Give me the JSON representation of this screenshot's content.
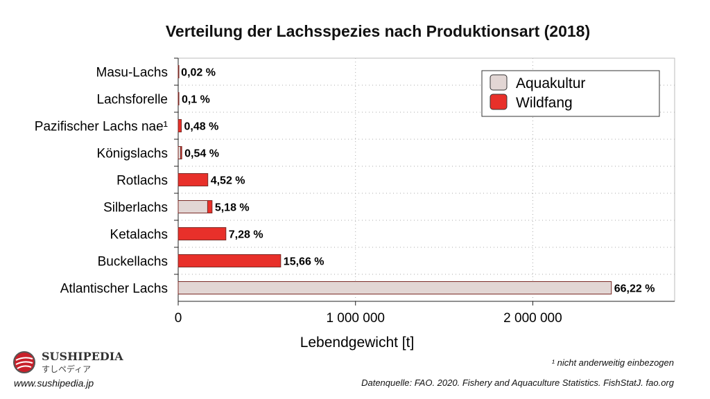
{
  "chart_data": {
    "type": "bar",
    "orientation": "horizontal",
    "stacked": true,
    "title": "Verteilung der Lachsspezies nach Produktionsart (2018)",
    "xlabel": "Lebendgewicht [t]",
    "ylabel": "",
    "xlim": [
      0,
      2800000
    ],
    "xticks": [
      0,
      1000000,
      2000000
    ],
    "xtick_labels": [
      "0",
      "1 000 000",
      "2 000 000"
    ],
    "grid": true,
    "legend_position": "top-right",
    "categories": [
      "Masu-Lachs",
      "Lachsforelle",
      "Pazifischer Lachs nae¹",
      "Königslachs",
      "Rotlachs",
      "Silberlachs",
      "Ketalachs",
      "Buckellachs",
      "Atlantischer Lachs"
    ],
    "series": [
      {
        "name": "Aquakultur",
        "color": "#e2d6d4",
        "values": [
          700,
          3700,
          0,
          14000,
          0,
          166000,
          0,
          0,
          2443000
        ]
      },
      {
        "name": "Wildfang",
        "color": "#e8302a",
        "values": [
          0,
          0,
          17700,
          6000,
          167000,
          25000,
          269000,
          578000,
          0
        ]
      }
    ],
    "data_labels": [
      "0,02 %",
      "0,1 %",
      "0,48 %",
      "0,54 %",
      "4,52 %",
      "5,18 %",
      "7,28 %",
      "15,66 %",
      "66,22 %"
    ]
  },
  "footnote": "¹ nicht anderweitig einbezogen",
  "source": "Datenquelle: FAO. 2020. Fishery and Aquaculture Statistics. FishStatJ. fao.org",
  "logo": {
    "brand": "SUSHIPEDIA",
    "jp": "すしペディア",
    "url": "www.sushipedia.jp"
  }
}
